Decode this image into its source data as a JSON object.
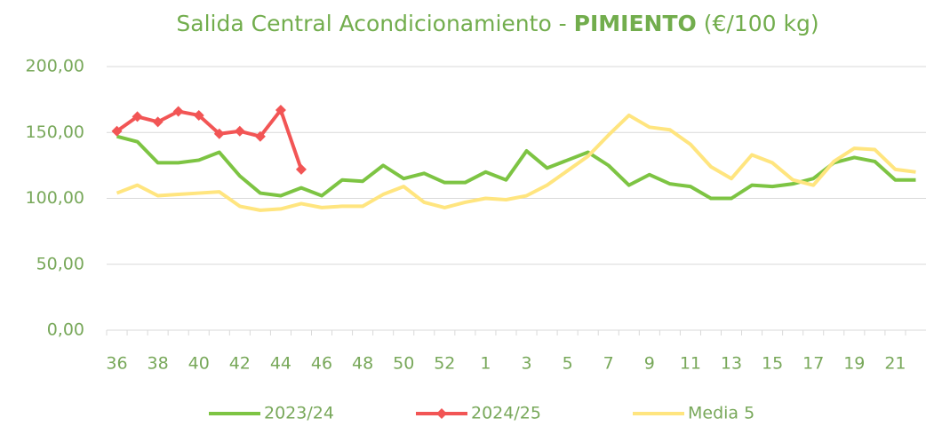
{
  "chart_data": {
    "type": "line",
    "title": {
      "prefix": "Salida Central Acondicionamiento - ",
      "emphasis": "PIMIENTO",
      "suffix": " (€/100 kg)"
    },
    "categories": [
      "36",
      null,
      "38",
      null,
      "40",
      null,
      "42",
      null,
      "44",
      null,
      "46",
      null,
      "48",
      null,
      "50",
      null,
      "52",
      null,
      "1",
      null,
      "3",
      null,
      "5",
      null,
      "7",
      null,
      "9",
      null,
      "11",
      null,
      "13",
      null,
      "15",
      null,
      "17",
      null,
      "19",
      null,
      "21",
      null
    ],
    "series": [
      {
        "name": "2023/24",
        "color": "#7dc443",
        "marker": null,
        "values": [
          147,
          143,
          127,
          127,
          129,
          135,
          117,
          104,
          102,
          108,
          102,
          114,
          113,
          125,
          115,
          119,
          112,
          112,
          120,
          114,
          136,
          123,
          129,
          135,
          125,
          110,
          118,
          111,
          109,
          100,
          100,
          110,
          109,
          111,
          115,
          127,
          131,
          128,
          114,
          114
        ]
      },
      {
        "name": "2024/25",
        "color": "#f25555",
        "marker": "diamond",
        "values": [
          151,
          162,
          158,
          166,
          163,
          149,
          151,
          147,
          167,
          122,
          null,
          null,
          null,
          null,
          null,
          null,
          null,
          null,
          null,
          null,
          null,
          null,
          null,
          null,
          null,
          null,
          null,
          null,
          null,
          null,
          null,
          null,
          null,
          null,
          null,
          null,
          null,
          null,
          null,
          null
        ]
      },
      {
        "name": "Media 5",
        "color": "#ffe57f",
        "marker": null,
        "values": [
          104,
          110,
          102,
          103,
          104,
          105,
          94,
          91,
          92,
          96,
          93,
          94,
          94,
          103,
          109,
          97,
          93,
          97,
          100,
          99,
          102,
          110,
          121,
          132,
          148,
          163,
          154,
          152,
          141,
          124,
          115,
          133,
          127,
          114,
          110,
          128,
          138,
          137,
          122,
          120
        ]
      }
    ],
    "ylim": [
      0,
      200
    ],
    "yticks": [
      {
        "value": 0,
        "label": "0,00"
      },
      {
        "value": 50,
        "label": "50,00"
      },
      {
        "value": 100,
        "label": "100,00"
      },
      {
        "value": 150,
        "label": "150,00"
      },
      {
        "value": 200,
        "label": "200,00"
      }
    ],
    "grid": true,
    "legend": "bottom"
  }
}
